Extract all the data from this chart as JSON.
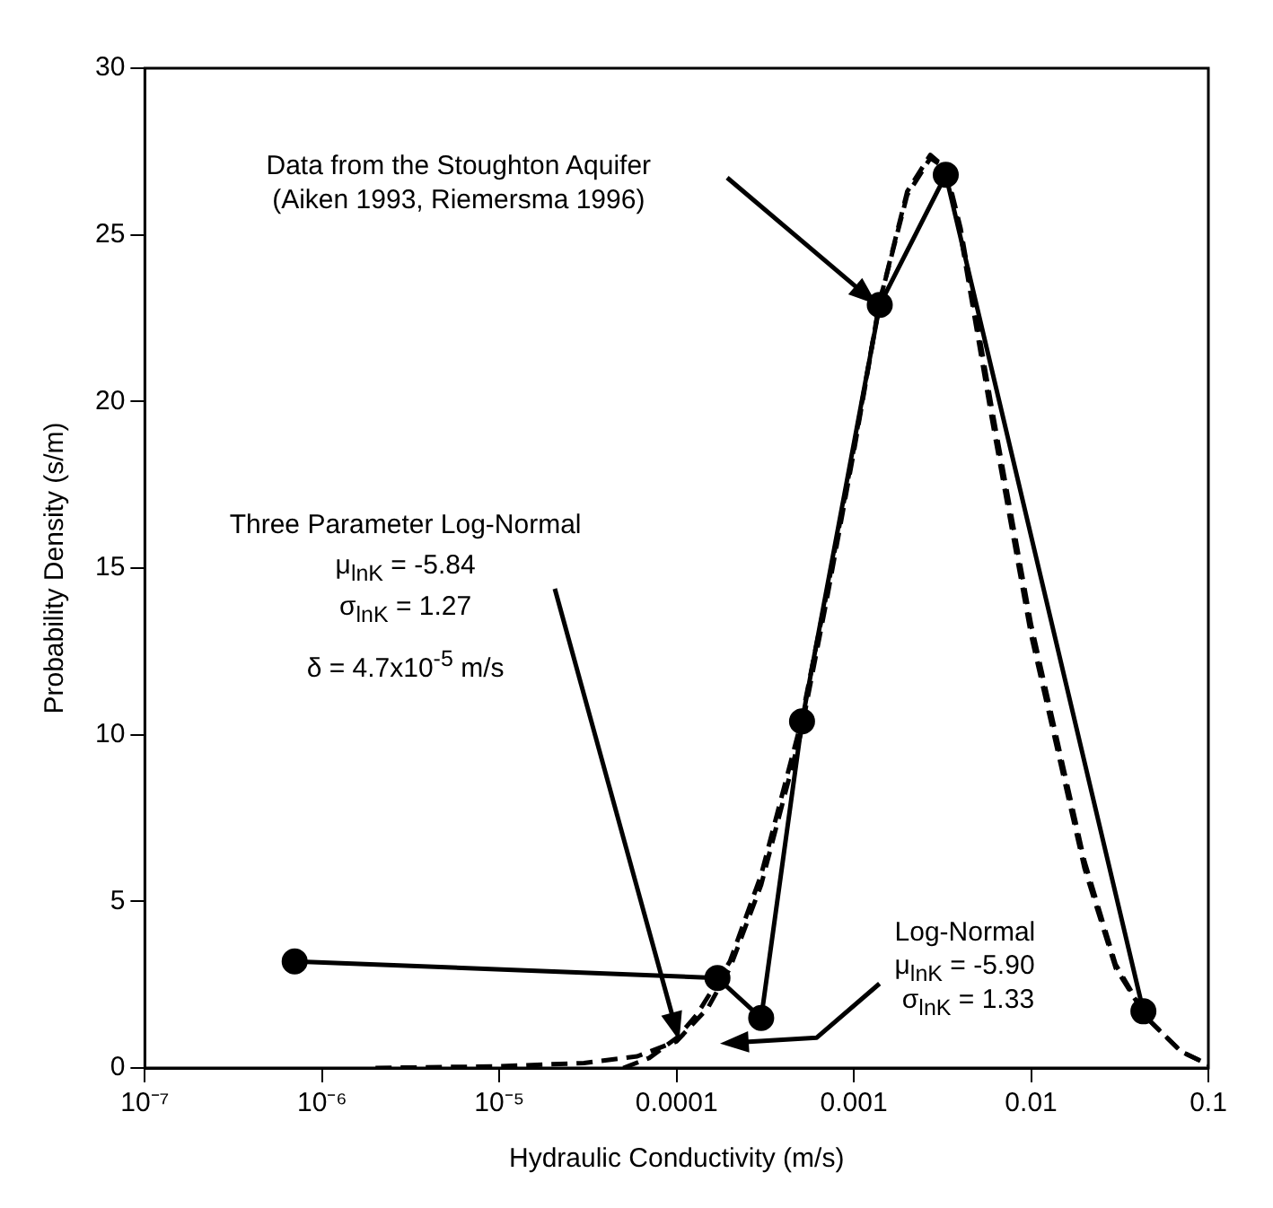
{
  "chart_data": {
    "type": "line",
    "xlabel": "Hydraulic Conductivity (m/s)",
    "ylabel": "Probability Density (s/m)",
    "log": "x",
    "xlim": [
      1e-07,
      0.1
    ],
    "xticks": [
      {
        "value": 1e-07,
        "label": "10⁻⁷"
      },
      {
        "value": 1e-06,
        "label": "10⁻⁶"
      },
      {
        "value": 1e-05,
        "label": "10⁻⁵"
      },
      0.0001,
      0.001,
      0.01,
      0.1
    ],
    "ylim": [
      0,
      30
    ],
    "yticks": [
      0,
      5,
      10,
      15,
      20,
      25,
      30
    ],
    "grid": false,
    "legend": false,
    "series": [
      {
        "color": "#000000",
        "line_style": "solid",
        "marker": "circle",
        "x": [
          7e-07,
          0.00017,
          0.0003,
          0.00051,
          0.0014,
          0.0033,
          0.043
        ],
        "values": [
          3.2,
          2.7,
          1.5,
          10.4,
          22.9,
          26.8,
          1.7
        ]
      },
      {
        "color": "#000000",
        "line_style": "dashed",
        "marker": "none",
        "x": [
          2e-06,
          1e-05,
          3e-05,
          6e-05,
          0.0001,
          0.00015,
          0.0002,
          0.0003,
          0.0005,
          0.0007,
          0.001,
          0.0014,
          0.002,
          0.0027,
          0.0033,
          0.004,
          0.006,
          0.01,
          0.02,
          0.03,
          0.045,
          0.07,
          0.1
        ],
        "values": [
          0,
          0.05,
          0.15,
          0.35,
          0.8,
          1.8,
          3,
          5.5,
          10,
          14,
          18.5,
          23,
          26.3,
          27.4,
          27,
          25,
          19.5,
          13,
          6,
          3,
          1.5,
          0.5,
          0.1
        ]
      },
      {
        "color": "#000000",
        "line_style": "dashed",
        "marker": "none",
        "x": [
          5e-05,
          7e-05,
          0.0001,
          0.00013,
          0.0002,
          0.0003,
          0.0005,
          0.0007,
          0.001,
          0.0014,
          0.002,
          0.0027,
          0.0033,
          0.004,
          0.006,
          0.01,
          0.02,
          0.03,
          0.045,
          0.07,
          0.1
        ],
        "values": [
          0,
          0.3,
          0.9,
          1.6,
          3.2,
          5.8,
          10.3,
          14.2,
          18.6,
          23,
          26.2,
          27.3,
          27,
          25.2,
          19.8,
          13.3,
          6.2,
          3.1,
          1.5,
          0.5,
          0.1
        ]
      }
    ],
    "annotations": [
      "Data from the Stoughton Aquifer",
      "(Aiken 1993, Riemersma 1996)",
      "Three Parameter Log-Normal",
      "μ$_{lnK}$ = -5.84",
      "σ$_{lnK}$ = 1.27",
      "δ = 4.7x10$^{-5}$ m/s",
      "Log-Normal",
      "μ$_{lnK}$ = -5.90",
      "σ$_{lnK}$ = 1.33"
    ]
  }
}
